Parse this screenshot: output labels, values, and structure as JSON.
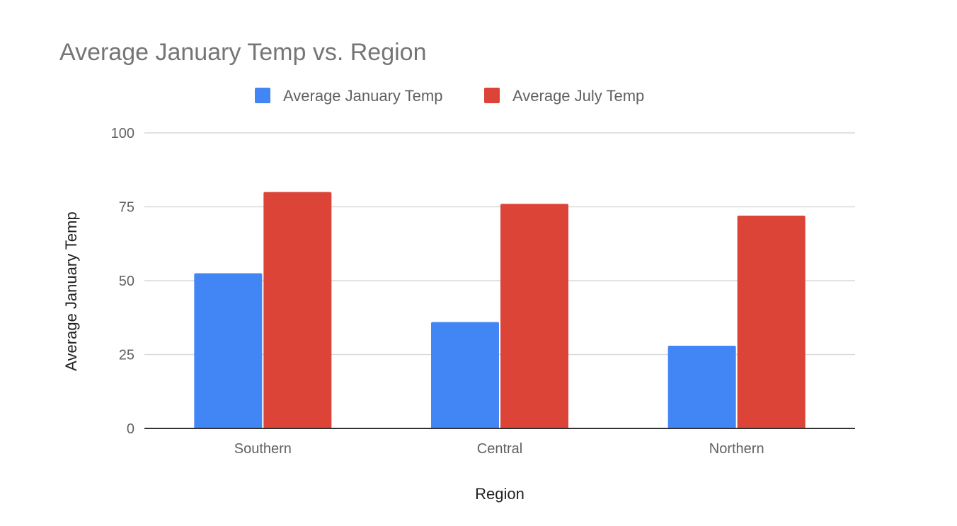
{
  "chart_data": {
    "type": "bar",
    "title": "Average January Temp vs. Region",
    "xlabel": "Region",
    "ylabel": "Average January Temp",
    "categories": [
      "Southern",
      "Central",
      "Northern"
    ],
    "series": [
      {
        "name": "Average January Temp",
        "values": [
          52.5,
          36,
          28
        ],
        "color": "#4285F4"
      },
      {
        "name": "Average July Temp",
        "values": [
          80,
          76,
          72
        ],
        "color": "#DB4437"
      }
    ],
    "ylim": [
      0,
      100
    ],
    "yticks": [
      0,
      25,
      50,
      75,
      100
    ],
    "grid": true,
    "legend_position": "top"
  }
}
